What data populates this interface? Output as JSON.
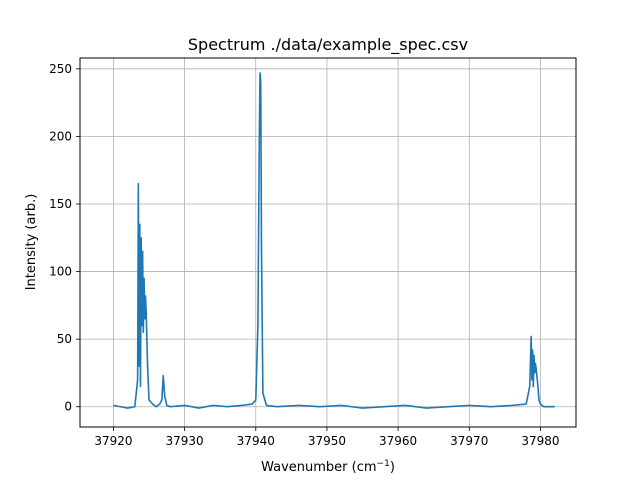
{
  "chart_data": {
    "type": "line",
    "title": "Spectrum ./data/example_spec.csv",
    "xlabel_main": "Wavenumber (cm",
    "xlabel_sup": "−1",
    "xlabel_tail": ")",
    "ylabel": "Intensity (arb.)",
    "xlim": [
      37915.3,
      37985.0
    ],
    "ylim": [
      -15,
      258
    ],
    "xticks": [
      37920,
      37930,
      37940,
      37950,
      37960,
      37970,
      37980
    ],
    "xtick_labels": [
      "37920",
      "37930",
      "37940",
      "37950",
      "37960",
      "37970",
      "37980"
    ],
    "yticks": [
      0,
      50,
      100,
      150,
      200,
      250
    ],
    "ytick_labels": [
      "0",
      "50",
      "100",
      "150",
      "200",
      "250"
    ],
    "grid": true,
    "line_color": "#1f77b4",
    "series": [
      {
        "x": [
          37920.0,
          37921.0,
          37922.0,
          37923.0,
          37923.4,
          37923.5,
          37923.6,
          37923.7,
          37923.8,
          37923.9,
          37924.0,
          37924.1,
          37924.2,
          37924.3,
          37924.4,
          37924.5,
          37924.6,
          37924.8,
          37925.0,
          37925.5,
          37926.0,
          37926.5,
          37926.8,
          37927.0,
          37927.2,
          37927.5,
          37928.0,
          37930.0,
          37932.0,
          37934.0,
          37936.0,
          37938.0,
          37939.5,
          37940.0,
          37940.3,
          37940.5,
          37940.6,
          37940.7,
          37940.8,
          37941.0,
          37941.5,
          37943.0,
          37946.0,
          37949.0,
          37952.0,
          37955.0,
          37958.0,
          37961.0,
          37964.0,
          37967.0,
          37970.0,
          37973.0,
          37976.0,
          37978.0,
          37978.5,
          37978.7,
          37978.8,
          37978.9,
          37979.0,
          37979.1,
          37979.2,
          37979.3,
          37979.4,
          37979.6,
          37979.8,
          37980.0,
          37980.5,
          37981.0,
          37982.0
        ],
        "y": [
          1,
          0,
          -1,
          0,
          20,
          165,
          30,
          135,
          15,
          125,
          60,
          115,
          55,
          95,
          65,
          82,
          70,
          30,
          5,
          2,
          0,
          2,
          5,
          23,
          8,
          1,
          0,
          1,
          -1,
          1,
          0,
          1,
          2,
          5,
          60,
          200,
          247,
          240,
          120,
          10,
          1,
          0,
          1,
          0,
          1,
          -1,
          0,
          1,
          -1,
          0,
          1,
          0,
          1,
          2,
          15,
          52,
          20,
          42,
          15,
          38,
          25,
          32,
          28,
          18,
          5,
          2,
          0,
          0,
          0
        ]
      }
    ]
  }
}
